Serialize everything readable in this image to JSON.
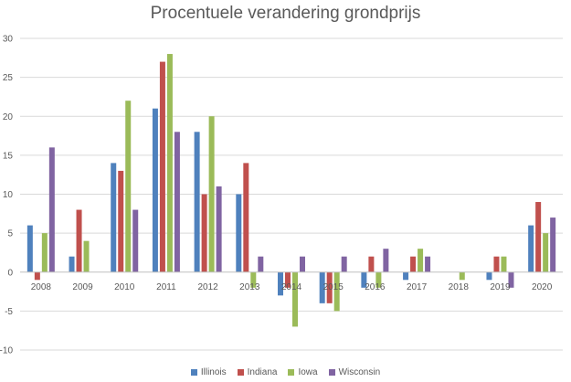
{
  "chart_data": {
    "type": "bar",
    "title": "Procentuele verandering grondprijs",
    "xlabel": "",
    "ylabel": "",
    "ylim": [
      -10,
      30
    ],
    "yticks": [
      -10,
      -5,
      0,
      5,
      10,
      15,
      20,
      25,
      30
    ],
    "grid": true,
    "legend_position": "bottom",
    "categories": [
      "2008",
      "2009",
      "2010",
      "2011",
      "2012",
      "2013",
      "2014",
      "2015",
      "2016",
      "2017",
      "2018",
      "2019",
      "2020"
    ],
    "series": [
      {
        "name": "Illinois",
        "color": "#4F81BD",
        "values": [
          6,
          2,
          14,
          21,
          18,
          10,
          -3,
          -4,
          -2,
          -1,
          0,
          -1,
          6
        ]
      },
      {
        "name": "Indiana",
        "color": "#C0504D",
        "values": [
          -1,
          8,
          13,
          27,
          10,
          14,
          -2,
          -4,
          2,
          2,
          0,
          2,
          9
        ]
      },
      {
        "name": "Iowa",
        "color": "#9BBB59",
        "values": [
          5,
          4,
          22,
          28,
          20,
          -2,
          -7,
          -5,
          -2,
          3,
          -1,
          2,
          5
        ]
      },
      {
        "name": "Wisconsin",
        "color": "#8064A2",
        "values": [
          16,
          0,
          8,
          18,
          11,
          2,
          2,
          2,
          3,
          2,
          0,
          -2,
          7
        ]
      }
    ]
  }
}
